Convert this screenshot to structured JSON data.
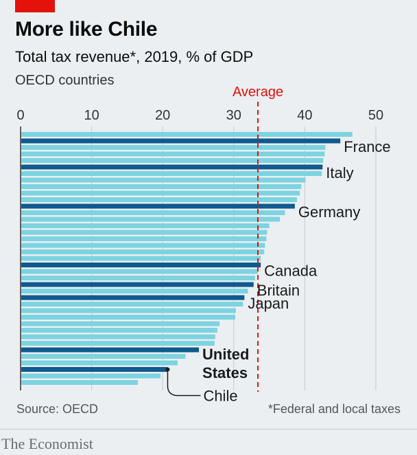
{
  "header": {
    "title": "More like Chile",
    "subtitle": "Total tax revenue*, 2019, % of GDP",
    "note": "OECD countries"
  },
  "footer": {
    "source": "Source: OECD",
    "footnote": "*Federal and local taxes",
    "brand": "The Economist"
  },
  "colors": {
    "bar": "#7dd3e0",
    "highlight": "#0f5a8f",
    "average": "#e3120b",
    "accent_tab": "#e3120b"
  },
  "chart_data": {
    "type": "bar",
    "orientation": "horizontal",
    "xlim": [
      0,
      50
    ],
    "xticks": [
      0,
      10,
      20,
      30,
      40,
      50
    ],
    "average": {
      "label": "Average",
      "value": 33.4
    },
    "bars": [
      {
        "value": 46.7
      },
      {
        "value": 45.0,
        "label": "France",
        "highlight": true
      },
      {
        "value": 42.9
      },
      {
        "value": 42.8
      },
      {
        "value": 42.6
      },
      {
        "value": 42.5,
        "label": "Italy",
        "highlight": true
      },
      {
        "value": 42.4
      },
      {
        "value": 40.1
      },
      {
        "value": 39.5
      },
      {
        "value": 39.3
      },
      {
        "value": 38.9
      },
      {
        "value": 38.6,
        "label": "Germany",
        "highlight": true
      },
      {
        "value": 37.2
      },
      {
        "value": 36.5
      },
      {
        "value": 35.0
      },
      {
        "value": 34.7
      },
      {
        "value": 34.6
      },
      {
        "value": 34.4
      },
      {
        "value": 34.3
      },
      {
        "value": 33.8
      },
      {
        "value": 33.8,
        "label": "Canada",
        "highlight": true
      },
      {
        "value": 33.4
      },
      {
        "value": 33.0
      },
      {
        "value": 32.8,
        "label": "Britain",
        "highlight": true
      },
      {
        "value": 32.0
      },
      {
        "value": 31.5,
        "label": "Japan",
        "highlight": true
      },
      {
        "value": 31.3
      },
      {
        "value": 30.3
      },
      {
        "value": 30.2
      },
      {
        "value": 28.0
      },
      {
        "value": 27.7
      },
      {
        "value": 27.4
      },
      {
        "value": 27.3
      },
      {
        "value": 25.1,
        "label": "United States",
        "highlight": true,
        "bold": true
      },
      {
        "value": 23.2
      },
      {
        "value": 22.1
      },
      {
        "value": 20.7,
        "label": "Chile",
        "highlight": true
      },
      {
        "value": 19.7
      },
      {
        "value": 16.5
      }
    ]
  }
}
